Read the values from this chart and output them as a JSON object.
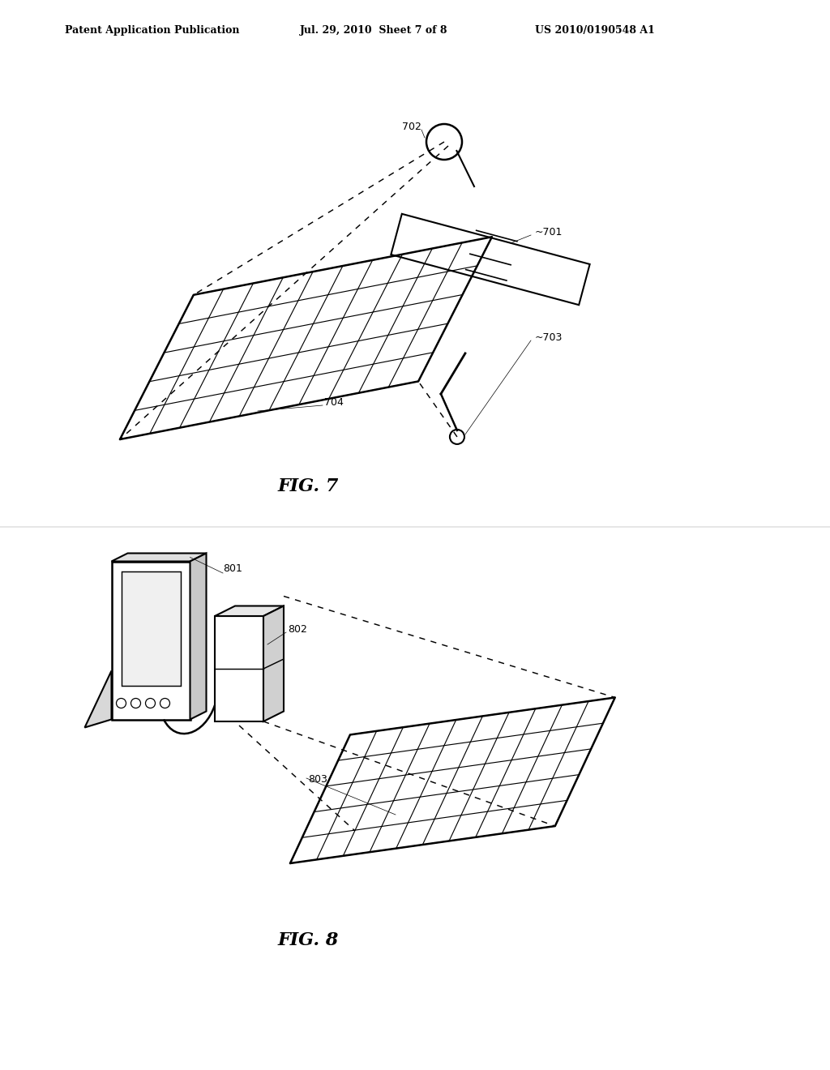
{
  "background_color": "#ffffff",
  "header_text": "Patent Application Publication",
  "header_date": "Jul. 29, 2010  Sheet 7 of 8",
  "header_patent": "US 2010/0190548 A1",
  "fig7_label": "FIG. 7",
  "fig8_label": "FIG. 8",
  "label_701": "701",
  "label_702": "702",
  "label_703": "703",
  "label_704": "704",
  "label_801": "801",
  "label_802": "802",
  "label_803": "803",
  "line_color": "#000000",
  "line_width": 1.5,
  "dashed_style": "--"
}
